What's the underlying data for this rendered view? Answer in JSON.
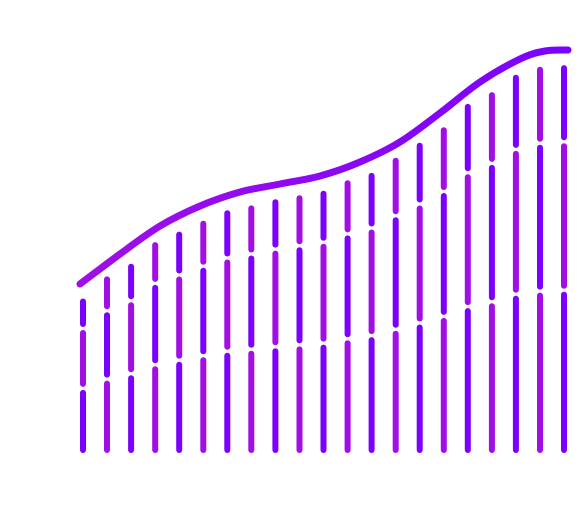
{
  "illustration": {
    "subject": "rising-wave-graphic",
    "colors": {
      "violet": "#7a00ff",
      "purple": "#a00fe6",
      "background": "#ffffff"
    }
  }
}
